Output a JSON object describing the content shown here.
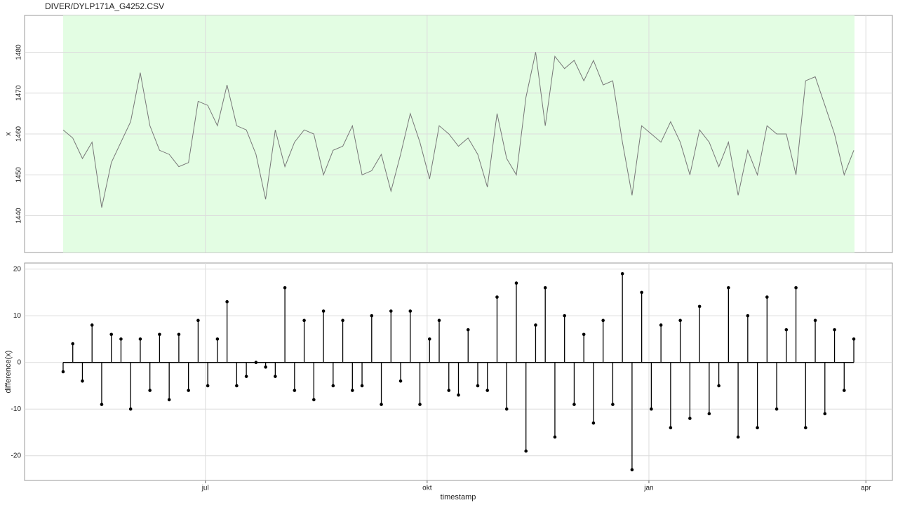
{
  "chart_data": [
    {
      "type": "line",
      "title": "DIVER/DYLP171A_G4252.CSV",
      "y_label": "x",
      "color": "#777777",
      "grid": true,
      "x": [
        0,
        4,
        8,
        12,
        16,
        20,
        24,
        28,
        32,
        36,
        40,
        44,
        48,
        52,
        56,
        60,
        64,
        68,
        72,
        76,
        80,
        84,
        88,
        92,
        96,
        100,
        104,
        108,
        112,
        116,
        120,
        124,
        128,
        132,
        136,
        140,
        144,
        148,
        152,
        156,
        160,
        164,
        168,
        172,
        176,
        180,
        184,
        188,
        192,
        196,
        200,
        204,
        208,
        212,
        216,
        220,
        224,
        228,
        232,
        236,
        240,
        244,
        248,
        252,
        256,
        260,
        264,
        268,
        272,
        276,
        280,
        284,
        288,
        292,
        296,
        300,
        304,
        308,
        312,
        316,
        320,
        324,
        328
      ],
      "values": [
        1461,
        1459,
        1454,
        1458,
        1442,
        1453,
        1458,
        1463,
        1475,
        1462,
        1456,
        1455,
        1452,
        1453,
        1468,
        1467,
        1462,
        1472,
        1462,
        1461,
        1455,
        1444,
        1461,
        1452,
        1458,
        1461,
        1460,
        1450,
        1456,
        1457,
        1462,
        1450,
        1451,
        1455,
        1446,
        1455,
        1465,
        1458,
        1449,
        1462,
        1460,
        1457,
        1459,
        1455,
        1447,
        1465,
        1454,
        1450,
        1469,
        1480,
        1462,
        1479,
        1476,
        1478,
        1473,
        1478,
        1472,
        1473,
        1458,
        1445,
        1462,
        1460,
        1458,
        1463,
        1458,
        1450,
        1461,
        1458,
        1452,
        1458,
        1445,
        1456,
        1450,
        1462,
        1460,
        1460,
        1450,
        1473,
        1474,
        1467,
        1460,
        1450,
        1456
      ],
      "ylim": [
        1431,
        1489
      ],
      "yticks": [
        1440,
        1450,
        1460,
        1470,
        1480
      ]
    },
    {
      "type": "stem",
      "x_label": "timestamp",
      "y_label": "difference(x)",
      "color": "#000000",
      "grid": true,
      "values": [
        -2,
        4,
        -4,
        8,
        -9,
        6,
        5,
        -10,
        5,
        -6,
        6,
        -8,
        6,
        -6,
        9,
        -5,
        5,
        13,
        -5,
        -3,
        0,
        -1,
        -3,
        16,
        -6,
        9,
        -8,
        11,
        -5,
        9,
        -6,
        -5,
        10,
        -9,
        11,
        -4,
        11,
        -9,
        5,
        9,
        -6,
        -7,
        7,
        -5,
        -6,
        14,
        -10,
        17,
        -19,
        8,
        16,
        -16,
        10,
        -9,
        6,
        -13,
        9,
        -9,
        19,
        -23,
        15,
        -10,
        8,
        -14,
        9,
        -12,
        12,
        -11,
        -5,
        16,
        -16,
        10,
        -14,
        14,
        -10,
        7,
        16,
        -14,
        9,
        -11,
        7,
        -6,
        5
      ],
      "ylim": [
        -25.3,
        21.3
      ],
      "yticks": [
        -20,
        -10,
        0,
        10,
        20
      ],
      "xlim": [
        -16,
        344
      ],
      "xticks": [
        {
          "value": 59,
          "label": "jul"
        },
        {
          "value": 151,
          "label": "okt"
        },
        {
          "value": 243,
          "label": "jan"
        },
        {
          "value": 333,
          "label": "apr"
        }
      ]
    }
  ]
}
